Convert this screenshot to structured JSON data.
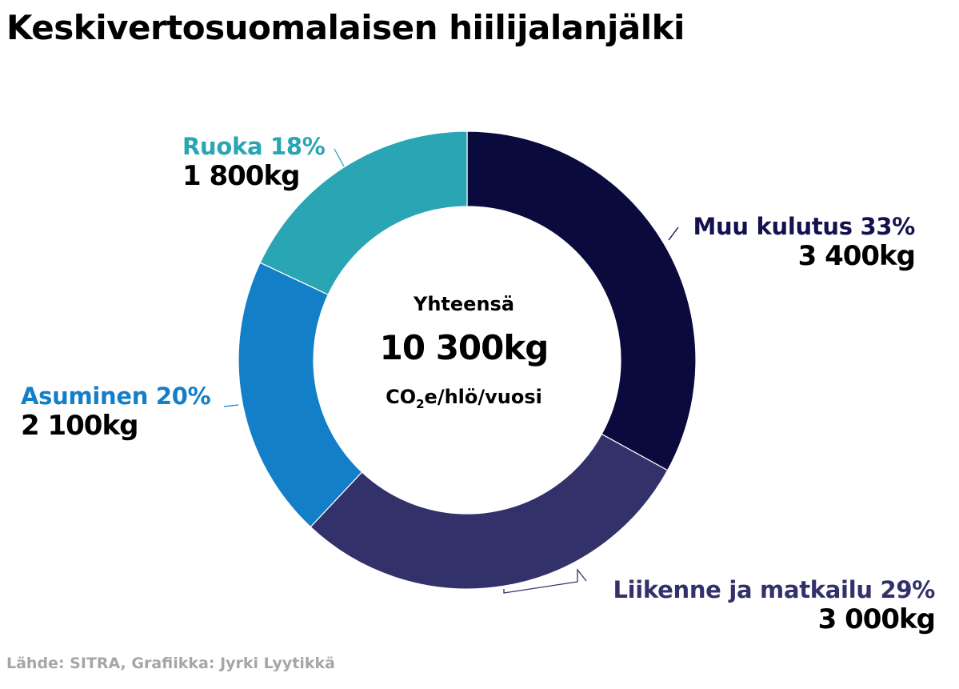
{
  "title": "Keskivertosuomalaisen hiilijalanjälki",
  "chart_data": {
    "type": "donut",
    "title": "Keskivertosuomalaisen hiilijalanjälki",
    "unit": "kg",
    "total": {
      "heading": "Yhteensä",
      "value": "10 300kg",
      "unit_prefix": "CO",
      "unit_sub": "2",
      "unit_suffix": "e/hlö/vuosi"
    },
    "slices": [
      {
        "name": "Muu kulutus",
        "label": "Muu kulutus 33%",
        "percent": 33,
        "value": 3400,
        "value_label": "3 400kg",
        "color": "#0b0a3d",
        "label_color": "#14114f"
      },
      {
        "name": "Liikenne ja matkailu",
        "label": "Liikenne ja matkailu 29%",
        "percent": 29,
        "value": 3000,
        "value_label": "3 000kg",
        "color": "#33316a",
        "label_color": "#33316a"
      },
      {
        "name": "Asuminen",
        "label": "Asuminen 20%",
        "percent": 20,
        "value": 2100,
        "value_label": "2 100kg",
        "color": "#137fc8",
        "label_color": "#137fc8"
      },
      {
        "name": "Ruoka",
        "label": "Ruoka 18%",
        "percent": 18,
        "value": 1800,
        "value_label": "1 800kg",
        "color": "#29a5b3",
        "label_color": "#29a5b3"
      }
    ]
  },
  "source": "Lähde: SITRA,  Grafiikka: Jyrki Lyytikkä"
}
